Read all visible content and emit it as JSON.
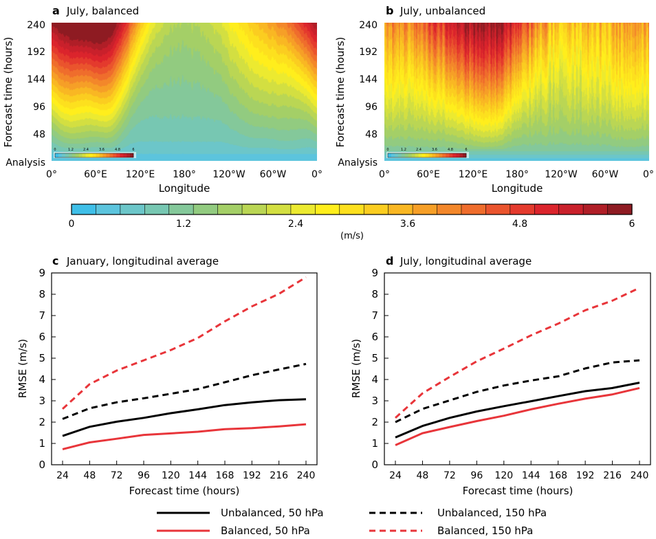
{
  "colorbar": {
    "ticks": [
      "0",
      "1.2",
      "2.4",
      "3.6",
      "4.8",
      "6"
    ],
    "unit": "(m/s)",
    "colors": [
      "#3fbfe8",
      "#5cc4dd",
      "#6cc6c9",
      "#77c7b2",
      "#84c89a",
      "#92cb80",
      "#a4cf67",
      "#bad654",
      "#d3df41",
      "#ecea30",
      "#ffee1c",
      "#fde01e",
      "#fbcd20",
      "#f9b723",
      "#f69f27",
      "#f3872a",
      "#ef6d2c",
      "#ea542d",
      "#e43a2d",
      "#db242c",
      "#c9202b",
      "#b01e27",
      "#8e1b22"
    ]
  },
  "panels": {
    "a": {
      "letter": "a",
      "title": "July, balanced",
      "xticks": [
        "0°",
        "60°E",
        "120°E",
        "180°",
        "120°W",
        "60°W",
        "0°"
      ],
      "yticks": [
        "Analysis",
        "48",
        "96",
        "144",
        "192",
        "240"
      ],
      "xlabel": "Longitude",
      "ylabel": "Forecast time (hours)",
      "inset_ticks": [
        "0",
        "1.2",
        "2.4",
        "3.6",
        "4.8",
        "6"
      ]
    },
    "b": {
      "letter": "b",
      "title": "July, unbalanced",
      "xticks": [
        "0°",
        "60°E",
        "120°E",
        "180°",
        "120°W",
        "60°W",
        "0°"
      ],
      "yticks": [
        "Analysis",
        "48",
        "96",
        "144",
        "192",
        "240"
      ],
      "xlabel": "Longitude",
      "ylabel": "Forecast time (hours)",
      "inset_ticks": [
        "0",
        "1.2",
        "2.4",
        "3.6",
        "4.8",
        "6"
      ]
    },
    "c": {
      "letter": "c",
      "title": "January, longitudinal average",
      "xlabel": "Forecast time (hours)",
      "ylabel": "RMSE (m/s)"
    },
    "d": {
      "letter": "d",
      "title": "July, longitudinal average",
      "xlabel": "Forecast time (hours)",
      "ylabel": "RMSE (m/s)"
    }
  },
  "legend": [
    {
      "label": "Unbalanced, 50 hPa",
      "color": "#000000",
      "dash": false
    },
    {
      "label": "Balanced, 50 hPa",
      "color": "#e8353a",
      "dash": false
    },
    {
      "label": "Unbalanced, 150 hPa",
      "color": "#000000",
      "dash": true
    },
    {
      "label": "Balanced, 150 hPa",
      "color": "#e8353a",
      "dash": true
    }
  ],
  "chart_data": [
    {
      "type": "heatmap",
      "panel": "a",
      "title": "July, balanced",
      "xlabel": "Longitude",
      "ylabel": "Forecast time (hours)",
      "x_range_deg": [
        0,
        360
      ],
      "y_range_hours": [
        0,
        240
      ],
      "color_range": [
        0,
        6
      ],
      "ridges": [
        {
          "lon": 40,
          "width": 40,
          "amp": 3.0
        },
        {
          "lon": 80,
          "width": 22,
          "amp": 2.2
        },
        {
          "lon": 15,
          "width": 20,
          "amp": 1.0
        },
        {
          "lon": 270,
          "width": 30,
          "amp": 0.7
        },
        {
          "lon": 320,
          "width": 40,
          "amp": 1.2
        }
      ],
      "base_value": 1.6
    },
    {
      "type": "heatmap",
      "panel": "b",
      "title": "July, unbalanced",
      "xlabel": "Longitude",
      "ylabel": "Forecast time (hours)",
      "x_range_deg": [
        0,
        360
      ],
      "y_range_hours": [
        0,
        240
      ],
      "color_range": [
        0,
        6
      ],
      "ridges": [
        {
          "lon": 130,
          "width": 45,
          "amp": 2.0
        },
        {
          "lon": 150,
          "width": 25,
          "amp": 0.9
        },
        {
          "lon": 50,
          "width": 60,
          "amp": 0.6
        },
        {
          "lon": 330,
          "width": 40,
          "amp": 0.5
        }
      ],
      "base_value": 2.8
    },
    {
      "type": "line",
      "panel": "c",
      "title": "January, longitudinal average",
      "xlabel": "Forecast time (hours)",
      "ylabel": "RMSE (m/s)",
      "x": [
        24,
        48,
        72,
        96,
        120,
        144,
        168,
        192,
        216,
        240
      ],
      "ylim": [
        0,
        9
      ],
      "series": [
        {
          "name": "Unbalanced, 50 hPa",
          "color": "#000000",
          "dash": false,
          "values": [
            1.35,
            1.78,
            2.02,
            2.2,
            2.42,
            2.6,
            2.8,
            2.93,
            3.03,
            3.07
          ]
        },
        {
          "name": "Balanced, 50 hPa",
          "color": "#e8353a",
          "dash": false,
          "values": [
            0.73,
            1.05,
            1.22,
            1.4,
            1.47,
            1.55,
            1.67,
            1.72,
            1.8,
            1.9
          ]
        },
        {
          "name": "Unbalanced, 150 hPa",
          "color": "#000000",
          "dash": true,
          "values": [
            2.15,
            2.65,
            2.93,
            3.12,
            3.33,
            3.55,
            3.87,
            4.2,
            4.47,
            4.73
          ]
        },
        {
          "name": "Balanced, 150 hPa",
          "color": "#e8353a",
          "dash": true,
          "values": [
            2.62,
            3.78,
            4.42,
            4.9,
            5.38,
            5.95,
            6.73,
            7.43,
            8.02,
            8.8
          ]
        }
      ]
    },
    {
      "type": "line",
      "panel": "d",
      "title": "July, longitudinal average",
      "xlabel": "Forecast time (hours)",
      "ylabel": "RMSE (m/s)",
      "x": [
        24,
        48,
        72,
        96,
        120,
        144,
        168,
        192,
        216,
        240
      ],
      "ylim": [
        0,
        9
      ],
      "series": [
        {
          "name": "Unbalanced, 50 hPa",
          "color": "#000000",
          "dash": false,
          "values": [
            1.28,
            1.82,
            2.2,
            2.5,
            2.75,
            2.98,
            3.22,
            3.45,
            3.6,
            3.85
          ]
        },
        {
          "name": "Balanced, 50 hPa",
          "color": "#e8353a",
          "dash": false,
          "values": [
            0.92,
            1.48,
            1.77,
            2.05,
            2.3,
            2.6,
            2.86,
            3.1,
            3.3,
            3.6
          ]
        },
        {
          "name": "Unbalanced, 150 hPa",
          "color": "#000000",
          "dash": true,
          "values": [
            2.0,
            2.62,
            3.02,
            3.42,
            3.72,
            3.95,
            4.15,
            4.52,
            4.8,
            4.9
          ]
        },
        {
          "name": "Balanced, 150 hPa",
          "color": "#e8353a",
          "dash": true,
          "values": [
            2.2,
            3.35,
            4.12,
            4.85,
            5.45,
            6.07,
            6.62,
            7.25,
            7.7,
            8.3
          ]
        }
      ]
    }
  ]
}
